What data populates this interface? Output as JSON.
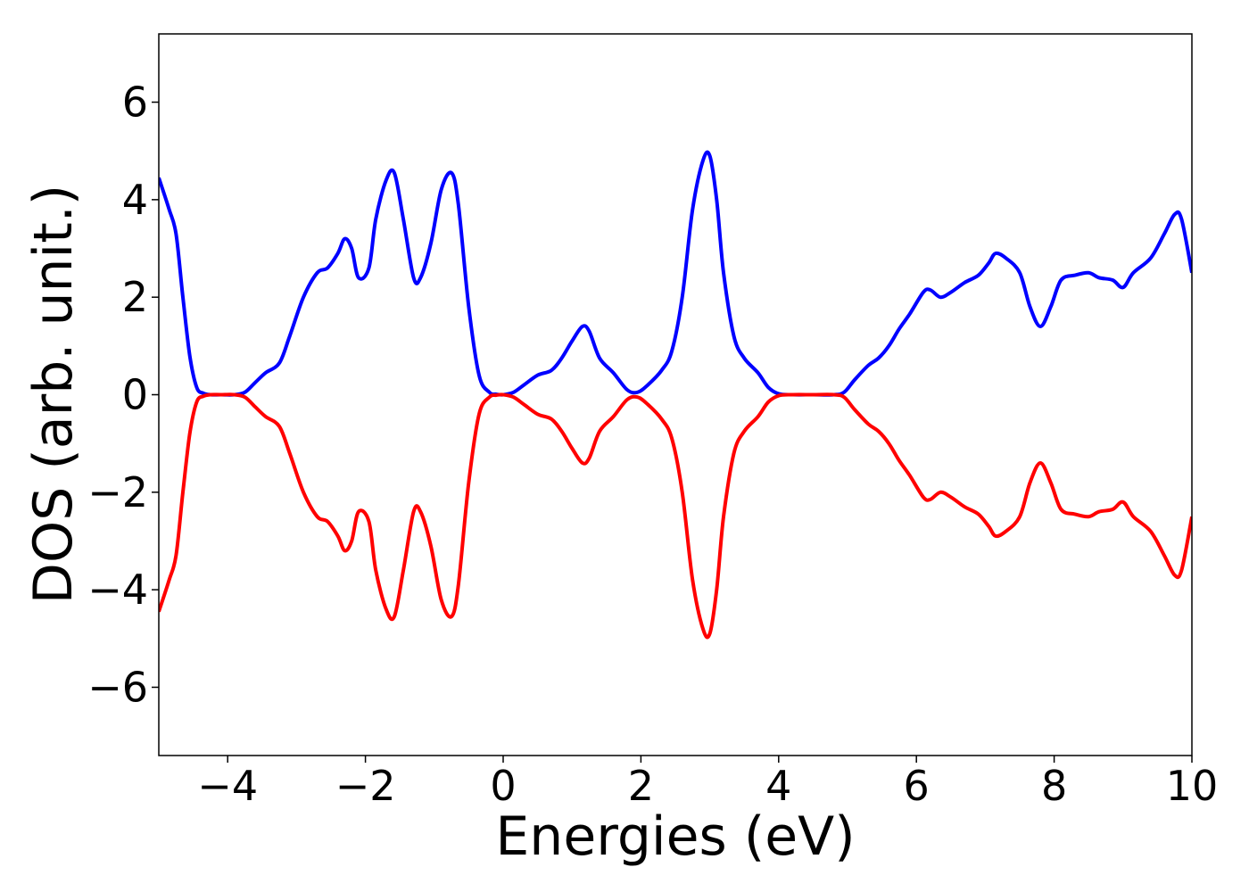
{
  "chart_data": {
    "type": "line",
    "title": "",
    "xlabel": "Energies (eV)",
    "ylabel": "DOS (arb. unit.)",
    "xlim": [
      -5,
      10
    ],
    "ylim": [
      -7.4,
      7.4
    ],
    "xticks": [
      -4,
      -2,
      0,
      2,
      4,
      6,
      8,
      10
    ],
    "yticks": [
      -6,
      -4,
      -2,
      0,
      2,
      4,
      6
    ],
    "xtick_labels": [
      "−4",
      "−2",
      "0",
      "2",
      "4",
      "6",
      "8",
      "10"
    ],
    "ytick_labels": [
      "−6",
      "−4",
      "−2",
      "0",
      "2",
      "4",
      "6"
    ],
    "grid": false,
    "legend": "none",
    "series": [
      {
        "color": "#0000ff",
        "x": [
          -5.0,
          -4.85,
          -4.75,
          -4.65,
          -4.55,
          -4.45,
          -4.35,
          -4.25,
          -4.1,
          -3.9,
          -3.75,
          -3.6,
          -3.45,
          -3.25,
          -3.1,
          -2.9,
          -2.7,
          -2.55,
          -2.4,
          -2.3,
          -2.2,
          -2.1,
          -1.95,
          -1.85,
          -1.7,
          -1.58,
          -1.45,
          -1.3,
          -1.2,
          -1.05,
          -0.9,
          -0.75,
          -0.65,
          -0.5,
          -0.35,
          -0.2,
          -0.1,
          0.0,
          0.15,
          0.3,
          0.5,
          0.7,
          0.85,
          1.0,
          1.15,
          1.25,
          1.4,
          1.6,
          1.8,
          1.95,
          2.1,
          2.3,
          2.45,
          2.6,
          2.75,
          2.9,
          3.0,
          3.1,
          3.2,
          3.35,
          3.5,
          3.7,
          3.85,
          4.0,
          4.2,
          4.5,
          4.8,
          4.95,
          5.1,
          5.3,
          5.45,
          5.6,
          5.75,
          5.9,
          6.1,
          6.2,
          6.35,
          6.5,
          6.7,
          6.9,
          7.05,
          7.15,
          7.3,
          7.5,
          7.65,
          7.8,
          7.95,
          8.1,
          8.3,
          8.5,
          8.65,
          8.85,
          9.0,
          9.15,
          9.4,
          9.6,
          9.75,
          9.85,
          10.0
        ],
        "values": [
          4.45,
          3.8,
          3.3,
          2.0,
          0.8,
          0.15,
          0.03,
          0.0,
          0.0,
          0.0,
          0.05,
          0.25,
          0.45,
          0.65,
          1.2,
          2.0,
          2.5,
          2.6,
          2.9,
          3.2,
          3.0,
          2.4,
          2.6,
          3.6,
          4.4,
          4.55,
          3.6,
          2.4,
          2.4,
          3.1,
          4.2,
          4.55,
          3.9,
          1.8,
          0.4,
          0.05,
          0.01,
          0.0,
          0.05,
          0.2,
          0.4,
          0.5,
          0.75,
          1.1,
          1.4,
          1.3,
          0.75,
          0.45,
          0.1,
          0.05,
          0.2,
          0.5,
          0.9,
          2.0,
          3.8,
          4.8,
          4.9,
          4.0,
          2.5,
          1.2,
          0.75,
          0.45,
          0.15,
          0.02,
          0.0,
          0.0,
          0.0,
          0.05,
          0.3,
          0.6,
          0.75,
          1.0,
          1.35,
          1.65,
          2.1,
          2.15,
          2.0,
          2.1,
          2.3,
          2.45,
          2.7,
          2.9,
          2.8,
          2.5,
          1.8,
          1.4,
          1.8,
          2.35,
          2.45,
          2.5,
          2.4,
          2.35,
          2.2,
          2.5,
          2.8,
          3.3,
          3.7,
          3.6,
          2.5
        ]
      },
      {
        "color": "#ff0000",
        "x": [
          -5.0,
          -4.85,
          -4.75,
          -4.65,
          -4.55,
          -4.45,
          -4.35,
          -4.25,
          -4.1,
          -3.9,
          -3.75,
          -3.6,
          -3.45,
          -3.25,
          -3.1,
          -2.9,
          -2.7,
          -2.55,
          -2.4,
          -2.3,
          -2.2,
          -2.1,
          -1.95,
          -1.85,
          -1.7,
          -1.58,
          -1.45,
          -1.3,
          -1.2,
          -1.05,
          -0.9,
          -0.75,
          -0.65,
          -0.5,
          -0.35,
          -0.2,
          -0.1,
          0.0,
          0.15,
          0.3,
          0.5,
          0.7,
          0.85,
          1.0,
          1.15,
          1.25,
          1.4,
          1.6,
          1.8,
          1.95,
          2.1,
          2.3,
          2.45,
          2.6,
          2.75,
          2.9,
          3.0,
          3.1,
          3.2,
          3.35,
          3.5,
          3.7,
          3.85,
          4.0,
          4.2,
          4.5,
          4.8,
          4.95,
          5.1,
          5.3,
          5.45,
          5.6,
          5.75,
          5.9,
          6.1,
          6.2,
          6.35,
          6.5,
          6.7,
          6.9,
          7.05,
          7.15,
          7.3,
          7.5,
          7.65,
          7.8,
          7.95,
          8.1,
          8.3,
          8.5,
          8.65,
          8.85,
          9.0,
          9.15,
          9.4,
          9.6,
          9.75,
          9.85,
          10.0
        ],
        "values": [
          -4.45,
          -3.8,
          -3.3,
          -2.0,
          -0.8,
          -0.15,
          -0.03,
          0.0,
          0.0,
          0.0,
          -0.05,
          -0.25,
          -0.45,
          -0.65,
          -1.2,
          -2.0,
          -2.5,
          -2.6,
          -2.9,
          -3.2,
          -3.0,
          -2.4,
          -2.6,
          -3.6,
          -4.4,
          -4.55,
          -3.6,
          -2.4,
          -2.4,
          -3.1,
          -4.2,
          -4.55,
          -3.9,
          -1.8,
          -0.4,
          -0.05,
          -0.01,
          0.0,
          -0.05,
          -0.2,
          -0.4,
          -0.5,
          -0.75,
          -1.1,
          -1.4,
          -1.3,
          -0.75,
          -0.45,
          -0.1,
          -0.05,
          -0.2,
          -0.5,
          -0.9,
          -2.0,
          -3.8,
          -4.8,
          -4.9,
          -4.0,
          -2.5,
          -1.2,
          -0.75,
          -0.45,
          -0.15,
          -0.02,
          0.0,
          0.0,
          0.0,
          -0.05,
          -0.3,
          -0.6,
          -0.75,
          -1.0,
          -1.35,
          -1.65,
          -2.1,
          -2.15,
          -2.0,
          -2.1,
          -2.3,
          -2.45,
          -2.7,
          -2.9,
          -2.8,
          -2.5,
          -1.8,
          -1.4,
          -1.8,
          -2.35,
          -2.45,
          -2.5,
          -2.4,
          -2.35,
          -2.2,
          -2.5,
          -2.8,
          -3.3,
          -3.7,
          -3.6,
          -2.5
        ]
      }
    ]
  }
}
